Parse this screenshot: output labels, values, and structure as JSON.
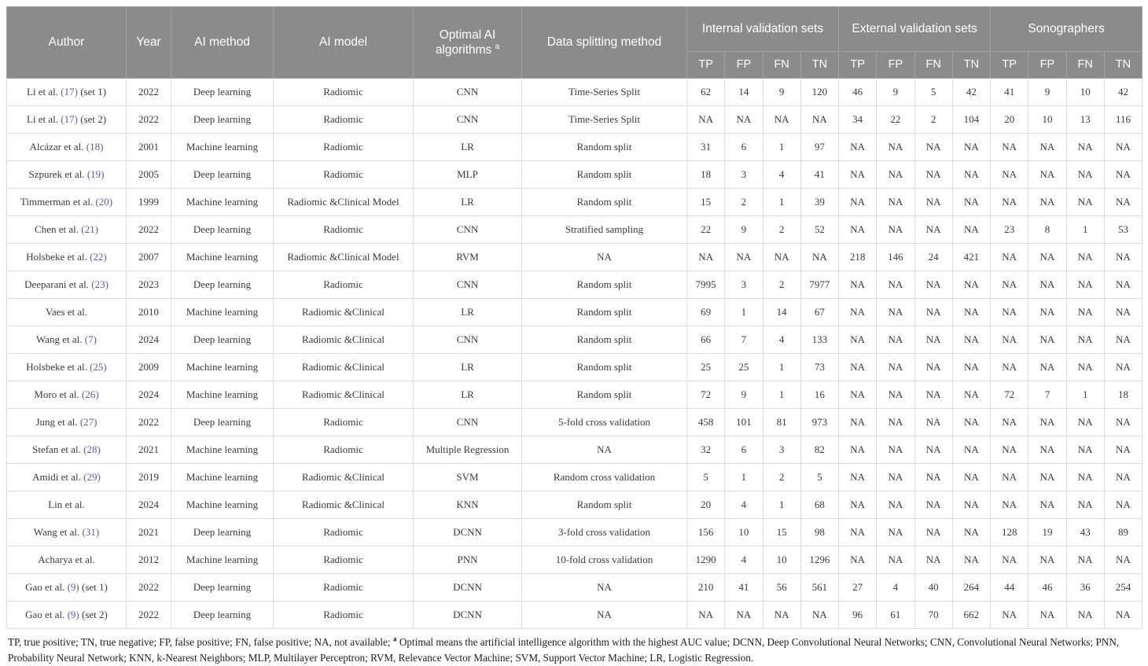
{
  "colors": {
    "header_background": "#8b8b8b",
    "header_text": "#ffffff",
    "body_border": "#dcdcdc",
    "body_text": "#3a3a3a",
    "reference_link": "#5c5c99"
  },
  "header": {
    "author": "Author",
    "year": "Year",
    "ai_method": "AI method",
    "ai_model": "AI model",
    "optimal_label": "Optimal AI algorithms",
    "optimal_sup": "a",
    "splitting": "Data splitting method",
    "groups": [
      {
        "label": "Internal validation sets"
      },
      {
        "label": "External validation sets"
      },
      {
        "label": "Sonographers"
      }
    ],
    "subcols": [
      "TP",
      "FP",
      "FN",
      "TN"
    ]
  },
  "rows": [
    {
      "author": {
        "pre": "Li et al.",
        "ref": "(17)",
        "post": "(set 1)"
      },
      "year": "2022",
      "method": "Deep learning",
      "model": "Radiomic",
      "algorithm": "CNN",
      "split": "Time-Series Split",
      "internal": [
        "62",
        "14",
        "9",
        "120"
      ],
      "external": [
        "46",
        "9",
        "5",
        "42"
      ],
      "sono": [
        "41",
        "9",
        "10",
        "42"
      ]
    },
    {
      "author": {
        "pre": "Li et al.",
        "ref": "(17)",
        "post": "(set 2)"
      },
      "year": "2022",
      "method": "Deep learning",
      "model": "Radiomic",
      "algorithm": "CNN",
      "split": "Time-Series Split",
      "internal": [
        "NA",
        "NA",
        "NA",
        "NA"
      ],
      "external": [
        "34",
        "22",
        "2",
        "104"
      ],
      "sono": [
        "20",
        "10",
        "13",
        "116"
      ]
    },
    {
      "author": {
        "pre": "Alcázar et al.",
        "ref": "(18)",
        "post": null
      },
      "year": "2001",
      "method": "Machine learning",
      "model": "Radiomic",
      "algorithm": "LR",
      "split": "Random split",
      "internal": [
        "31",
        "6",
        "1",
        "97"
      ],
      "external": [
        "NA",
        "NA",
        "NA",
        "NA"
      ],
      "sono": [
        "NA",
        "NA",
        "NA",
        "NA"
      ]
    },
    {
      "author": {
        "pre": "Szpurek et al.",
        "ref": "(19)",
        "post": null
      },
      "year": "2005",
      "method": "Deep learning",
      "model": "Radiomic",
      "algorithm": "MLP",
      "split": "Random split",
      "internal": [
        "18",
        "3",
        "4",
        "41"
      ],
      "external": [
        "NA",
        "NA",
        "NA",
        "NA"
      ],
      "sono": [
        "NA",
        "NA",
        "NA",
        "NA"
      ]
    },
    {
      "author": {
        "pre": "Timmerman et al.",
        "ref": "(20)",
        "post": null
      },
      "year": "1999",
      "method": "Machine learning",
      "model": "Radiomic &Clinical Model",
      "algorithm": "LR",
      "split": "Random split",
      "internal": [
        "15",
        "2",
        "1",
        "39"
      ],
      "external": [
        "NA",
        "NA",
        "NA",
        "NA"
      ],
      "sono": [
        "NA",
        "NA",
        "NA",
        "NA"
      ]
    },
    {
      "author": {
        "pre": "Chen et al.",
        "ref": "(21)",
        "post": null
      },
      "year": "2022",
      "method": "Deep learning",
      "model": "Radiomic",
      "algorithm": "CNN",
      "split": "Stratified sampling",
      "internal": [
        "22",
        "9",
        "2",
        "52"
      ],
      "external": [
        "NA",
        "NA",
        "NA",
        "NA"
      ],
      "sono": [
        "23",
        "8",
        "1",
        "53"
      ]
    },
    {
      "author": {
        "pre": "Holsbeke et al.",
        "ref": "(22)",
        "post": null
      },
      "year": "2007",
      "method": "Machine learning",
      "model": "Radiomic &Clinical Model",
      "algorithm": "RVM",
      "split": "NA",
      "internal": [
        "NA",
        "NA",
        "NA",
        "NA"
      ],
      "external": [
        "218",
        "146",
        "24",
        "421"
      ],
      "sono": [
        "NA",
        "NA",
        "NA",
        "NA"
      ]
    },
    {
      "author": {
        "pre": "Deeparani et al.",
        "ref": "(23)",
        "post": null
      },
      "year": "2023",
      "method": "Deep learning",
      "model": "Radiomic",
      "algorithm": "CNN",
      "split": "Random split",
      "internal": [
        "7995",
        "3",
        "2",
        "7977"
      ],
      "external": [
        "NA",
        "NA",
        "NA",
        "NA"
      ],
      "sono": [
        "NA",
        "NA",
        "NA",
        "NA"
      ]
    },
    {
      "author": {
        "pre": "Vaes et al.",
        "ref": null,
        "post": null
      },
      "year": "2010",
      "method": "Machine learning",
      "model": "Radiomic &Clinical",
      "algorithm": "LR",
      "split": "Random split",
      "internal": [
        "69",
        "1",
        "14",
        "67"
      ],
      "external": [
        "NA",
        "NA",
        "NA",
        "NA"
      ],
      "sono": [
        "NA",
        "NA",
        "NA",
        "NA"
      ]
    },
    {
      "author": {
        "pre": "Wang et al.",
        "ref": "(7)",
        "post": null
      },
      "year": "2024",
      "method": "Deep learning",
      "model": "Radiomic &Clinical",
      "algorithm": "CNN",
      "split": "Random split",
      "internal": [
        "66",
        "7",
        "4",
        "133"
      ],
      "external": [
        "NA",
        "NA",
        "NA",
        "NA"
      ],
      "sono": [
        "NA",
        "NA",
        "NA",
        "NA"
      ]
    },
    {
      "author": {
        "pre": "Holsbeke et al.",
        "ref": "(25)",
        "post": null
      },
      "year": "2009",
      "method": "Machine learning",
      "model": "Radiomic &Clinical",
      "algorithm": "LR",
      "split": "Random split",
      "internal": [
        "25",
        "25",
        "1",
        "73"
      ],
      "external": [
        "NA",
        "NA",
        "NA",
        "NA"
      ],
      "sono": [
        "NA",
        "NA",
        "NA",
        "NA"
      ]
    },
    {
      "author": {
        "pre": "Moro et al.",
        "ref": "(26)",
        "post": null
      },
      "year": "2024",
      "method": "Machine learning",
      "model": "Radiomic &Clinical",
      "algorithm": "LR",
      "split": "Random split",
      "internal": [
        "72",
        "9",
        "1",
        "16"
      ],
      "external": [
        "NA",
        "NA",
        "NA",
        "NA"
      ],
      "sono": [
        "72",
        "7",
        "1",
        "18"
      ]
    },
    {
      "author": {
        "pre": "Jung et al.",
        "ref": "(27)",
        "post": null
      },
      "year": "2022",
      "method": "Deep learning",
      "model": "Radiomic",
      "algorithm": "CNN",
      "split": "5-fold cross validation",
      "internal": [
        "458",
        "101",
        "81",
        "973"
      ],
      "external": [
        "NA",
        "NA",
        "NA",
        "NA"
      ],
      "sono": [
        "NA",
        "NA",
        "NA",
        "NA"
      ]
    },
    {
      "author": {
        "pre": "Stefan et al.",
        "ref": "(28)",
        "post": null
      },
      "year": "2021",
      "method": "Machine learning",
      "model": "Radiomic",
      "algorithm": "Multiple Regression",
      "split": "NA",
      "internal": [
        "32",
        "6",
        "3",
        "82"
      ],
      "external": [
        "NA",
        "NA",
        "NA",
        "NA"
      ],
      "sono": [
        "NA",
        "NA",
        "NA",
        "NA"
      ]
    },
    {
      "author": {
        "pre": "Amidi et al.",
        "ref": "(29)",
        "post": null
      },
      "year": "2019",
      "method": "Machine learning",
      "model": "Radiomic &Clinical",
      "algorithm": "SVM",
      "split": "Random cross validation",
      "internal": [
        "5",
        "1",
        "2",
        "5"
      ],
      "external": [
        "NA",
        "NA",
        "NA",
        "NA"
      ],
      "sono": [
        "NA",
        "NA",
        "NA",
        "NA"
      ]
    },
    {
      "author": {
        "pre": "Lin et al.",
        "ref": null,
        "post": null
      },
      "year": "2024",
      "method": "Machine learning",
      "model": "Radiomic &Clinical",
      "algorithm": "KNN",
      "split": "Random split",
      "internal": [
        "20",
        "4",
        "1",
        "68"
      ],
      "external": [
        "NA",
        "NA",
        "NA",
        "NA"
      ],
      "sono": [
        "NA",
        "NA",
        "NA",
        "NA"
      ]
    },
    {
      "author": {
        "pre": "Wang et al.",
        "ref": "(31)",
        "post": null
      },
      "year": "2021",
      "method": "Deep learning",
      "model": "Radiomic",
      "algorithm": "DCNN",
      "split": "3-fold cross validation",
      "internal": [
        "156",
        "10",
        "15",
        "98"
      ],
      "external": [
        "NA",
        "NA",
        "NA",
        "NA"
      ],
      "sono": [
        "128",
        "19",
        "43",
        "89"
      ]
    },
    {
      "author": {
        "pre": "Acharya et al.",
        "ref": null,
        "post": null
      },
      "year": "2012",
      "method": "Machine learning",
      "model": "Radiomic",
      "algorithm": "PNN",
      "split": "10-fold cross validation",
      "internal": [
        "1290",
        "4",
        "10",
        "1296"
      ],
      "external": [
        "NA",
        "NA",
        "NA",
        "NA"
      ],
      "sono": [
        "NA",
        "NA",
        "NA",
        "NA"
      ]
    },
    {
      "author": {
        "pre": "Gao et al.",
        "ref": "(9)",
        "post": "(set 1)"
      },
      "year": "2022",
      "method": "Deep learning",
      "model": "Radiomic",
      "algorithm": "DCNN",
      "split": "NA",
      "internal": [
        "210",
        "41",
        "56",
        "561"
      ],
      "external": [
        "27",
        "4",
        "40",
        "264"
      ],
      "sono": [
        "44",
        "46",
        "36",
        "254"
      ]
    },
    {
      "author": {
        "pre": "Gao et al.",
        "ref": "(9)",
        "post": "(set 2)"
      },
      "year": "2022",
      "method": "Deep learning",
      "model": "Radiomic",
      "algorithm": "DCNN",
      "split": "NA",
      "internal": [
        "NA",
        "NA",
        "NA",
        "NA"
      ],
      "external": [
        "96",
        "61",
        "70",
        "662"
      ],
      "sono": [
        "NA",
        "NA",
        "NA",
        "NA"
      ]
    }
  ],
  "footnote": {
    "pre": "TP, true positive; TN, true negative; FP, false positive; FN, false positive; NA, not available; ",
    "sup": "a",
    "post": " Optimal means the artificial intelligence algorithm with the highest AUC value; DCNN, Deep Convolutional Neural Networks; CNN, Convolutional Neural Networks; PNN, Probability Neural Network; KNN, k-Nearest Neighbors; MLP, Multilayer Perceptron; RVM, Relevance Vector Machine; SVM, Support Vector Machine; LR, Logistic Regression."
  }
}
